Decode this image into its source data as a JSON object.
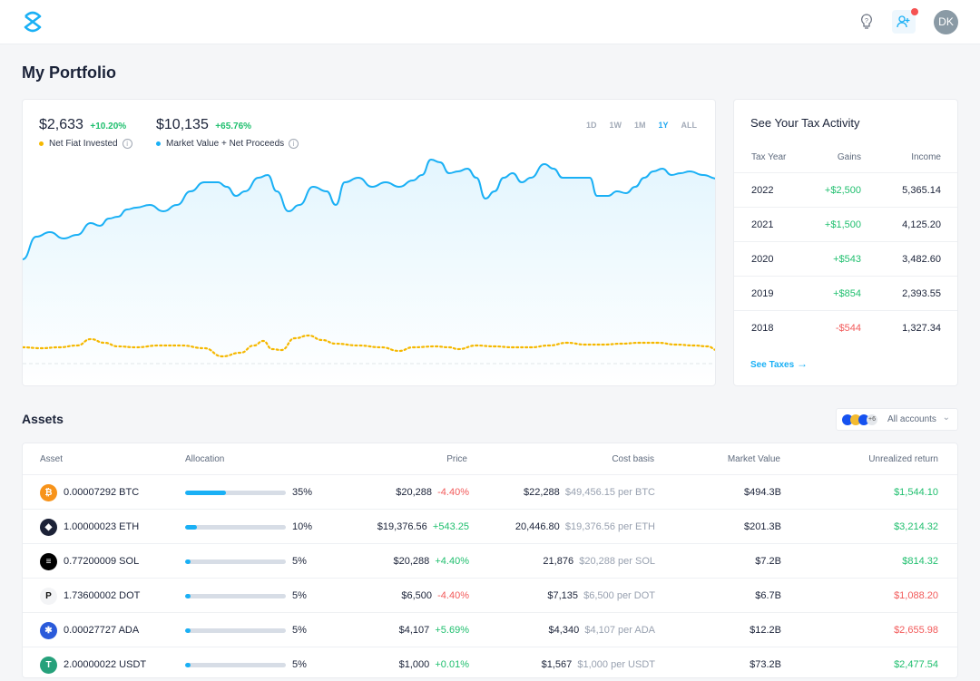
{
  "header": {
    "avatar_initials": "DK",
    "icons": [
      "logo-icon",
      "lightbulb-icon",
      "add-user-icon",
      "notification-dot"
    ],
    "accent": "#1ab0f5"
  },
  "page_title": "My Portfolio",
  "chart_card": {
    "stats": [
      {
        "value": "$2,633",
        "change": "+10.20%",
        "label": "Net Fiat Invested",
        "color": "#f5b800"
      },
      {
        "value": "$10,135",
        "change": "+65.76%",
        "label": "Market Value + Net Proceeds",
        "color": "#1ab0f5"
      }
    ],
    "ranges": [
      "1D",
      "1W",
      "1M",
      "1Y",
      "ALL"
    ],
    "active_range": "1Y"
  },
  "tax": {
    "title": "See Your Tax Activity",
    "headers": [
      "Tax Year",
      "Gains",
      "Income"
    ],
    "rows": [
      {
        "year": "2022",
        "gains": "+$2,500",
        "income": "5,365.14",
        "neg": false
      },
      {
        "year": "2021",
        "gains": "+$1,500",
        "income": "4,125.20",
        "neg": false
      },
      {
        "year": "2020",
        "gains": "+$543",
        "income": "3,482.60",
        "neg": false
      },
      {
        "year": "2019",
        "gains": "+$854",
        "income": "2,393.55",
        "neg": false
      },
      {
        "year": "2018",
        "gains": "-$544",
        "income": "1,327.34",
        "neg": true
      }
    ],
    "link": "See Taxes"
  },
  "assets": {
    "title": "Assets",
    "accounts_label": "All accounts",
    "accounts_more": "+6",
    "headers": [
      "Asset",
      "Allocation",
      "Price",
      "Cost basis",
      "Market Value",
      "Unrealized return"
    ],
    "rows": [
      {
        "amount": "0.00007292 BTC",
        "alloc": 35,
        "alloc_label": "35%",
        "price": "$20,288",
        "change": "-4.40%",
        "neg_change": true,
        "cost": "$22,288",
        "per": "$49,456.15 per BTC",
        "mv": "$494.3B",
        "ret": "$1,544.10",
        "neg_ret": false,
        "color": "#f7931a",
        "glyph": "₿"
      },
      {
        "amount": "1.00000023 ETH",
        "alloc": 10,
        "alloc_label": "10%",
        "price": "$19,376.56",
        "change": "+543.25",
        "neg_change": false,
        "cost": "20,446.80",
        "per": "$19,376.56 per ETH",
        "mv": "$201.3B",
        "ret": "$3,214.32",
        "neg_ret": false,
        "color": "#1c2237",
        "glyph": "◆"
      },
      {
        "amount": "0.77200009 SOL",
        "alloc": 5,
        "alloc_label": "5%",
        "price": "$20,288",
        "change": "+4.40%",
        "neg_change": false,
        "cost": "21,876",
        "per": "$20,288 per SOL",
        "mv": "$7.2B",
        "ret": "$814.32",
        "neg_ret": false,
        "color": "#000000",
        "glyph": "≡"
      },
      {
        "amount": "1.73600002 DOT",
        "alloc": 5,
        "alloc_label": "5%",
        "price": "$6,500",
        "change": "-4.40%",
        "neg_change": true,
        "cost": "$7,135",
        "per": "$6,500 per DOT",
        "mv": "$6.7B",
        "ret": "$1,088.20",
        "neg_ret": true,
        "color": "#f3f4f6",
        "glyph": "P"
      },
      {
        "amount": "0.00027727 ADA",
        "alloc": 5,
        "alloc_label": "5%",
        "price": "$4,107",
        "change": "+5.69%",
        "neg_change": false,
        "cost": "$4,340",
        "per": "$4,107 per ADA",
        "mv": "$12.2B",
        "ret": "$2,655.98",
        "neg_ret": true,
        "color": "#2a5ada",
        "glyph": "✱"
      },
      {
        "amount": "2.00000022 USDT",
        "alloc": 5,
        "alloc_label": "5%",
        "price": "$1,000",
        "change": "+0.01%",
        "neg_change": false,
        "cost": "$1,567",
        "per": "$1,000 per USDT",
        "mv": "$73.2B",
        "ret": "$2,477.54",
        "neg_ret": false,
        "color": "#26a17b",
        "glyph": "T"
      }
    ]
  }
}
